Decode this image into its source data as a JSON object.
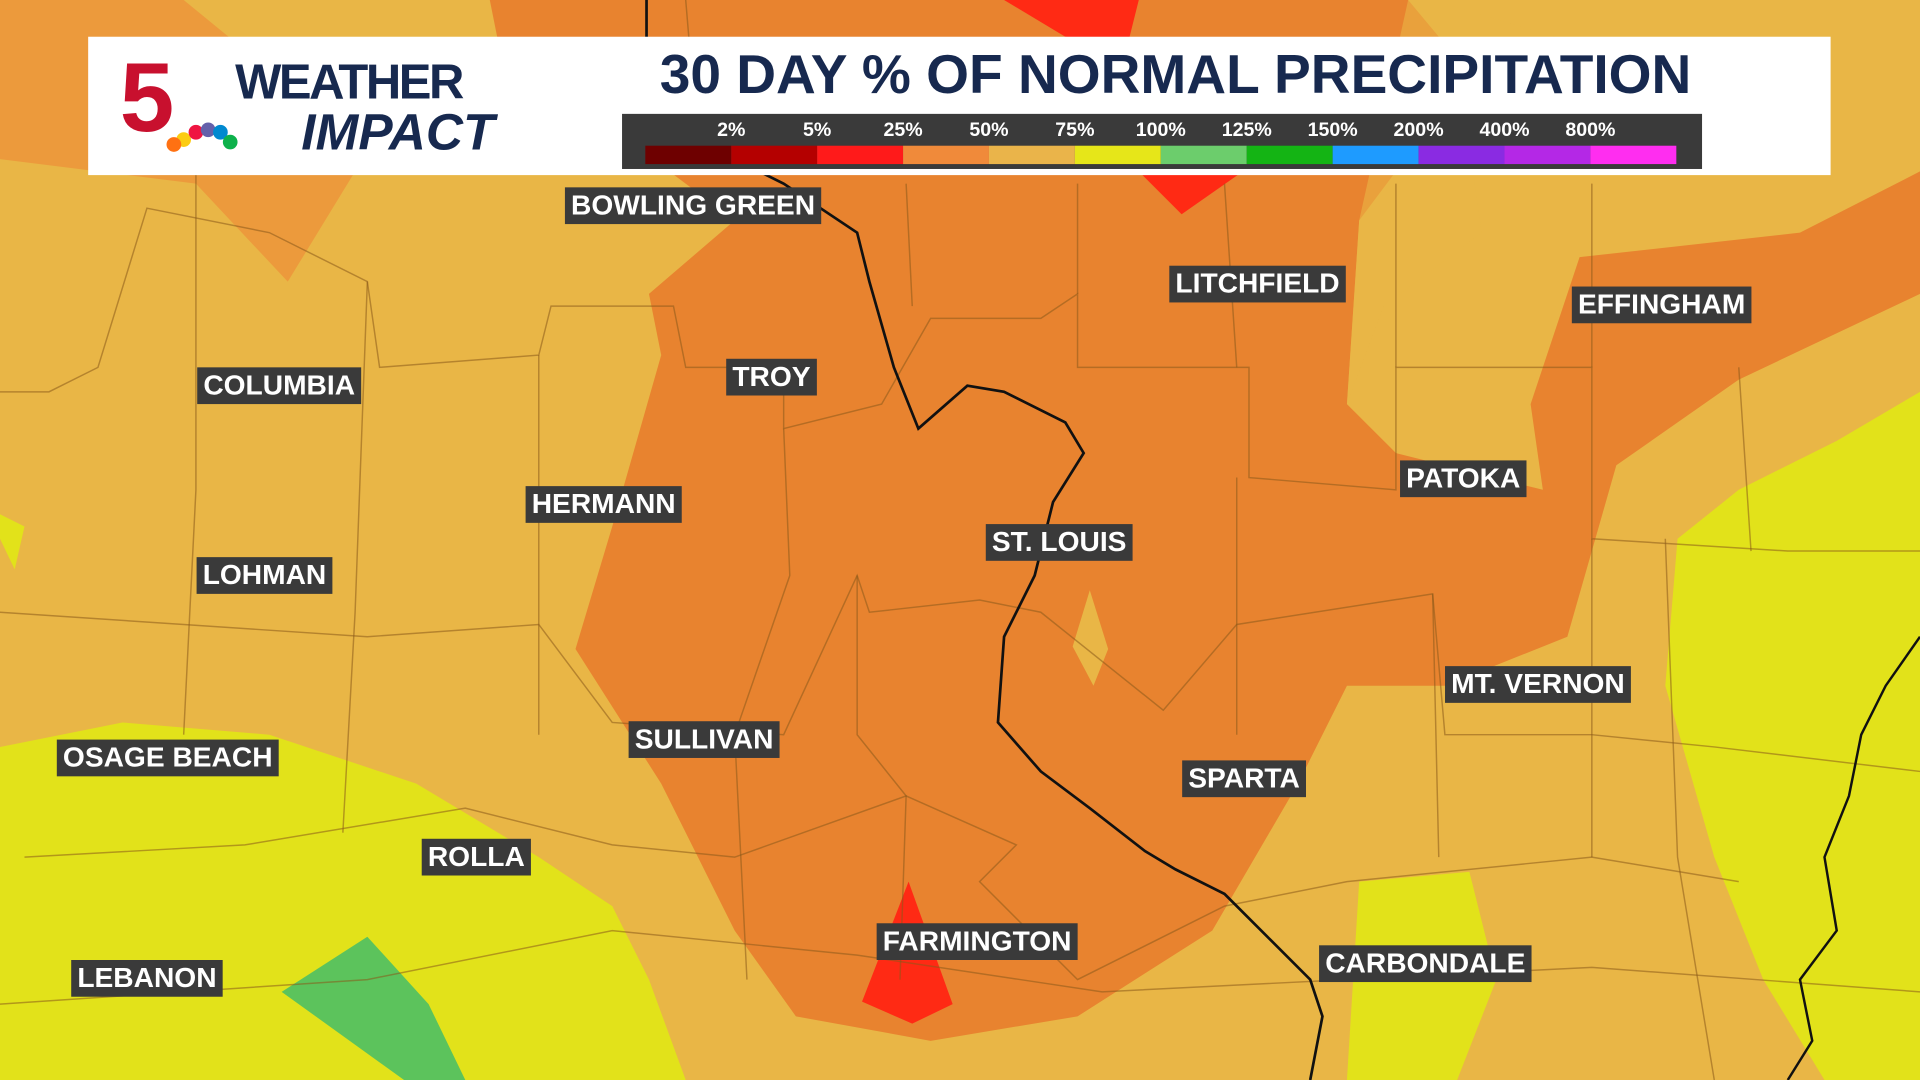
{
  "header": {
    "logo_number": "5",
    "logo_line1": "WEATHER",
    "logo_line2": "IMPACT",
    "title": "30 DAY % OF NORMAL PRECIPITATION"
  },
  "legend": {
    "labels": [
      "2%",
      "5%",
      "25%",
      "50%",
      "75%",
      "100%",
      "125%",
      "150%",
      "200%",
      "400%",
      "800%"
    ],
    "colors": [
      "#6e0000",
      "#b40000",
      "#ff1a1a",
      "#f08a3a",
      "#eab44a",
      "#e6e619",
      "#6ccd6c",
      "#14b414",
      "#1e9bff",
      "#8a2be2",
      "#b428e6",
      "#ff2df0"
    ]
  },
  "cities": [
    "BOWLING GREEN",
    "TROY",
    "LITCHFIELD",
    "EFFINGHAM",
    "COLUMBIA",
    "HERMANN",
    "ST. LOUIS",
    "PATOKA",
    "LOHMAN",
    "MT. VERNON",
    "SULLIVAN",
    "SPARTA",
    "OSAGE BEACH",
    "ROLLA",
    "FARMINGTON",
    "CARBONDALE",
    "LEBANON"
  ]
}
